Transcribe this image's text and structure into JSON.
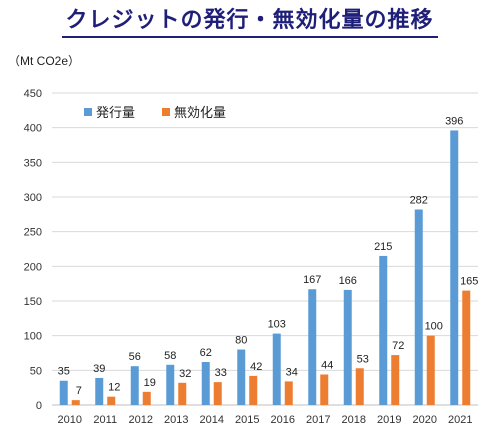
{
  "header": {
    "title": "クレジットの発行・無効化量の推移",
    "unit": "（Mt CO2e）"
  },
  "colors": {
    "issued": "#5b9bd5",
    "retired": "#ed7d31",
    "title": "#1f1f7a",
    "grid": "#d9d9d9"
  },
  "chart_data": {
    "type": "bar",
    "title": "クレジットの発行・無効化量の推移",
    "ylabel": "（Mt CO2e）",
    "xlabel": "",
    "categories": [
      "2010",
      "2011",
      "2012",
      "2013",
      "2014",
      "2015",
      "2016",
      "2017",
      "2018",
      "2019",
      "2020",
      "2021"
    ],
    "series": [
      {
        "name": "発行量",
        "color": "#5b9bd5",
        "values": [
          35,
          39,
          56,
          58,
          62,
          80,
          103,
          167,
          166,
          215,
          282,
          396
        ]
      },
      {
        "name": "無効化量",
        "color": "#ed7d31",
        "values": [
          7,
          12,
          19,
          32,
          33,
          42,
          34,
          44,
          53,
          72,
          100,
          165
        ]
      }
    ],
    "ylim": [
      0,
      450
    ],
    "yticks": [
      0,
      50,
      100,
      150,
      200,
      250,
      300,
      350,
      400,
      450
    ],
    "grid": true,
    "legend": "top-left"
  }
}
